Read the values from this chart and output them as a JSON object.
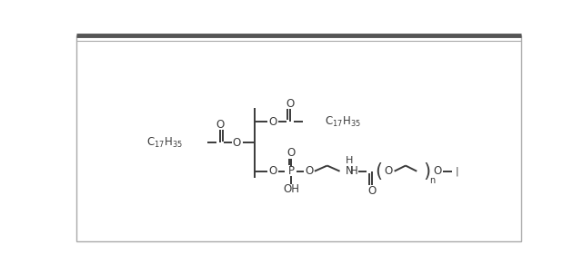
{
  "figsize": [
    6.41,
    3.02
  ],
  "dpi": 100,
  "bg_color": "#ffffff",
  "line_color": "#3a3a3a",
  "line_width": 1.4,
  "font_size": 8.5,
  "font_color": "#3a3a3a",
  "border_color": "#888888",
  "top_bar_color": "#555555",
  "xlim": [
    0,
    641
  ],
  "ylim": [
    0,
    302
  ]
}
